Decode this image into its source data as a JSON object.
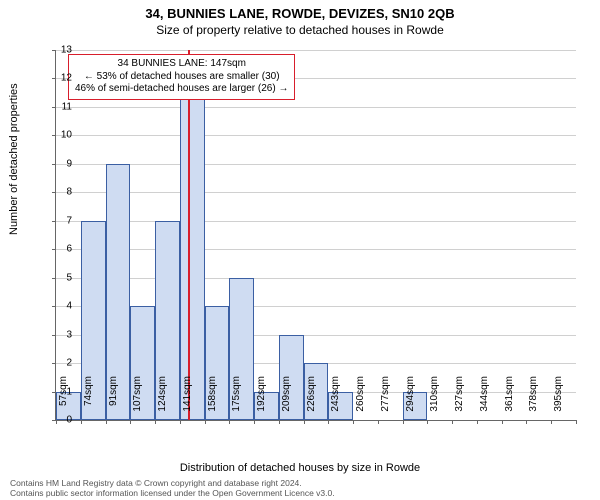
{
  "title": "34, BUNNIES LANE, ROWDE, DEVIZES, SN10 2QB",
  "subtitle": "Size of property relative to detached houses in Rowde",
  "chart": {
    "type": "histogram",
    "xlabel": "Distribution of detached houses by size in Rowde",
    "ylabel": "Number of detached properties",
    "x_categories": [
      "57sqm",
      "74sqm",
      "91sqm",
      "107sqm",
      "124sqm",
      "141sqm",
      "158sqm",
      "175sqm",
      "192sqm",
      "209sqm",
      "226sqm",
      "243sqm",
      "260sqm",
      "277sqm",
      "294sqm",
      "310sqm",
      "327sqm",
      "344sqm",
      "361sqm",
      "378sqm",
      "395sqm"
    ],
    "values": [
      1,
      7,
      9,
      4,
      7,
      12,
      4,
      5,
      1,
      3,
      2,
      1,
      0,
      0,
      1,
      0,
      0,
      0,
      0,
      0,
      0
    ],
    "y_min": 0,
    "y_max": 13,
    "y_ticks": [
      0,
      1,
      2,
      3,
      4,
      5,
      6,
      7,
      8,
      9,
      10,
      11,
      12,
      13
    ],
    "bar_fill": "#cfdcf2",
    "bar_border": "#3b5fa3",
    "grid_color": "#d0d0d0",
    "axis_color": "#666666",
    "background_color": "#ffffff",
    "marker": {
      "index": 5,
      "fraction_into_bin": 0.35,
      "color": "#d81e2c"
    },
    "annotation": {
      "line1": "34 BUNNIES LANE: 147sqm",
      "line2": "← 53% of detached houses are smaller (30)",
      "line3": "46% of semi-detached houses are larger (26) →",
      "border_color": "#d81e2c",
      "bg": "#ffffff",
      "fontsize": 10
    },
    "title_fontsize": 13,
    "subtitle_fontsize": 12,
    "label_fontsize": 11,
    "tick_fontsize": 10
  },
  "footer": {
    "line1": "Contains HM Land Registry data © Crown copyright and database right 2024.",
    "line2": "Contains public sector information licensed under the Open Government Licence v3.0."
  }
}
